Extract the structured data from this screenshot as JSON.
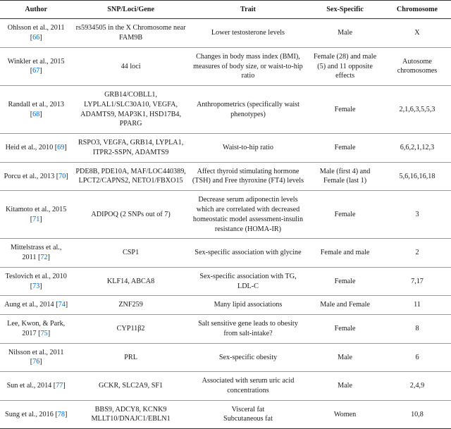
{
  "table": {
    "headers": {
      "author": "Author",
      "snp": "SNP/Loci/Gene",
      "trait": "Trait",
      "sex": "Sex-Specific",
      "chrom": "Chromosome"
    },
    "rows": [
      {
        "author_text": "Ohlsson et al., 2011 [",
        "ref": "66",
        "author_close": "]",
        "snp": "rs5934505 in the X Chromosome near FAM9B",
        "trait": "Lower testosterone levels",
        "sex": "Male",
        "chrom": "X"
      },
      {
        "author_text": "Winkler et al., 2015 [",
        "ref": "67",
        "author_close": "]",
        "snp": "44 loci",
        "trait": "Changes in body mass index (BMI), measures of body size, or waist-to-hip ratio",
        "sex": "Female (28) and male (5) and 11 opposite effects",
        "chrom": "Autosome chromosomes"
      },
      {
        "author_text": "Randall et al., 2013 [",
        "ref": "68",
        "author_close": "]",
        "snp": "GRB14/COBLL1, LYPLAL1/SLC30A10, VEGFA, ADAMTS9, MAP3K1, HSD17B4, PPARG",
        "trait": "Anthropometrics (specifically waist phenotypes)",
        "sex": "Female",
        "chrom": "2,1,6,3,5,5,3"
      },
      {
        "author_text": "Heid et al., 2010 [",
        "ref": "69",
        "author_close": "]",
        "snp": "RSPO3, VEGFA, GRB14, LYPLA1, ITPR2-SSPN, ADAMTS9",
        "trait": "Waist-to-hip ratio",
        "sex": "Female",
        "chrom": "6,6,2,1,12,3"
      },
      {
        "author_text": "Porcu et al., 2013 [",
        "ref": "70",
        "author_close": "]",
        "snp": "PDE8B, PDE10A, MAF/LOC440389, LPCT2/CAPNS2, NETO1/FBXO15",
        "trait": "Affect thyroid stimulating hormone (TSH) and Free thyroxine (FT4) levels",
        "sex": "Male (first 4) and Female (last 1)",
        "chrom": "5,6,16,16,18"
      },
      {
        "author_text": "Kitamoto et al., 2015 [",
        "ref": "71",
        "author_close": "]",
        "snp": "ADIPOQ (2 SNPs out of 7)",
        "trait": "Decrease serum adiponectin levels which are correlated with decreased homeostatic model assessment-insulin resistance (HOMA-IR)",
        "sex": "Female",
        "chrom": "3"
      },
      {
        "author_text": "Mittelstrass et al., 2011 [",
        "ref": "72",
        "author_close": "]",
        "snp": "CSP1",
        "trait": "Sex-specific association with glycine",
        "sex": "Female and male",
        "chrom": "2"
      },
      {
        "author_text": "Teslovich et al., 2010 [",
        "ref": "73",
        "author_close": "]",
        "snp": "KLF14, ABCA8",
        "trait": "Sex-specific association with TG, LDL-C",
        "sex": "Female",
        "chrom": "7,17"
      },
      {
        "author_text": "Aung et al., 2014 [",
        "ref": "74",
        "author_close": "]",
        "snp": "ZNF259",
        "trait": "Many lipid associations",
        "sex": "Male and Female",
        "chrom": "11"
      },
      {
        "author_text": "Lee, Kwon, & Park, 2017 [",
        "ref": "75",
        "author_close": "]",
        "snp": "CYP11β2",
        "trait": "Salt sensitive gene leads to obesity from salt-intake?",
        "sex": "Female",
        "chrom": "8"
      },
      {
        "author_text": "Nilsson et al., 2011 [",
        "ref": "76",
        "author_close": "]",
        "snp": "PRL",
        "trait": "Sex-specific obesity",
        "sex": "Male",
        "chrom": "6"
      },
      {
        "author_text": "Sun et al., 2014 [",
        "ref": "77",
        "author_close": "]",
        "snp": "GCKR, SLC2A9, SF1",
        "trait": "Associated with serum uric acid concentrations",
        "sex": "Male",
        "chrom": "2,4,9"
      },
      {
        "author_text": "Sung et al., 2016 [",
        "ref": "78",
        "author_close": "]",
        "snp": "BBS9, ADCY8, KCNK9 MLLT10/DNAJC1/EBLN1",
        "trait": "Visceral fat\nSubcutaneous fat",
        "sex": "Women",
        "chrom": "10,8"
      }
    ]
  }
}
